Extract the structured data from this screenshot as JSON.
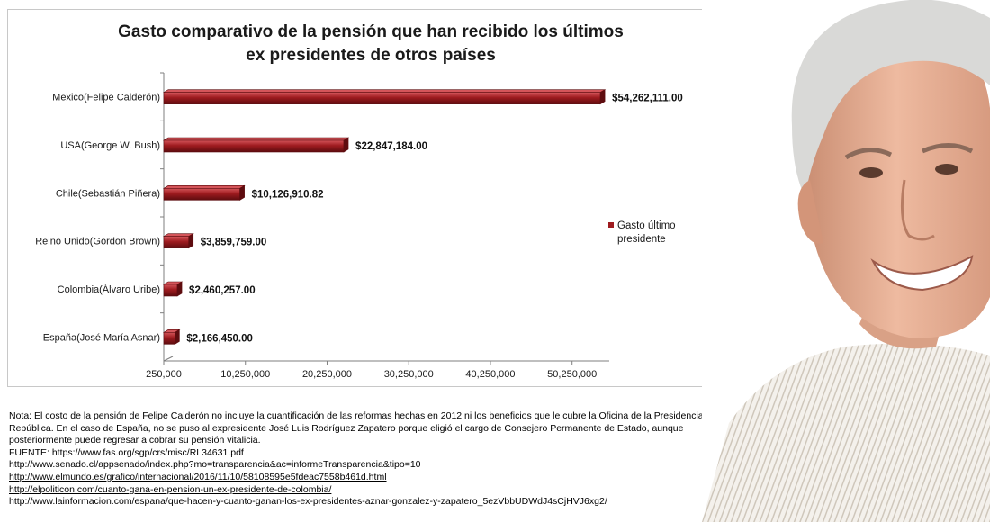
{
  "chart_data": {
    "type": "bar",
    "orientation": "horizontal",
    "title_lines": [
      "Gasto comparativo de la pensión que han recibido los últimos",
      "ex presidentes de otros países"
    ],
    "categories": [
      "Mexico(Felipe Calderón)",
      "USA(George W. Bush)",
      "Chile(Sebastián Piñera)",
      "Reino Unido(Gordon Brown)",
      "Colombia(Álvaro Uribe)",
      "España(José María Asnar)"
    ],
    "values": [
      54262111.0,
      22847184.0,
      10126910.82,
      3859759.0,
      2460257.0,
      2166450.0
    ],
    "value_labels": [
      "$54,262,111.00",
      "$22,847,184.00",
      "$10,126,910.82",
      "$3,859,759.00",
      "$2,460,257.00",
      "$2,166,450.00"
    ],
    "xlim": [
      250000,
      54250000
    ],
    "x_ticks": [
      250000,
      10250000,
      20250000,
      30250000,
      40250000,
      50250000
    ],
    "x_tick_labels": [
      "250,000",
      "10,250,000",
      "20,250,000",
      "30,250,000",
      "40,250,000",
      "50,250,000"
    ],
    "legend": {
      "label_lines": [
        "Gasto último",
        "presidente"
      ],
      "position": "right"
    },
    "colors": {
      "bar": "#9e1b1f",
      "bar_light": "#d4555a",
      "bar_dark": "#5e0c0f",
      "axis": "#7f7f7f"
    }
  },
  "notes": {
    "nota": "Nota: El costo de la pensión de Felipe Calderón no incluye la cuantificación de las reformas hechas en 2012 ni los beneficios que le cubre la Oficina de la Presidencia de la República. En el caso de España, no se puso al expresidente José Luis Rodríguez Zapatero porque eligió el cargo de Consejero Permanente de Estado, aunque posteriormente puede regresar a cobrar su pensión vitalicia.",
    "fuente": "FUENTE: https://www.fas.org/sgp/crs/misc/RL34631.pdf",
    "sources": [
      "http://www.senado.cl/appsenado/index.php?mo=transparencia&ac=informeTransparencia&tipo=10",
      "http://www.elmundo.es/grafico/internacional/2016/11/10/58108595e5fdeac7558b461d.html",
      "http://elpoliticon.com/cuanto-gana-en-pension-un-ex-presidente-de-colombia/",
      "http://www.lainformacion.com/espana/que-hacen-y-cuanto-ganan-los-ex-presidentes-aznar-gonzalez-y-zapatero_5ezVbbUDWdJ4sCjHVJ6xg2/"
    ]
  },
  "portrait": {
    "subject": "portrait-photo",
    "colors": {
      "skin": "#e9b39a",
      "hair": "#d8d8d6",
      "shirt": "#f2efe9",
      "stripe": "#cfc7bb"
    }
  }
}
